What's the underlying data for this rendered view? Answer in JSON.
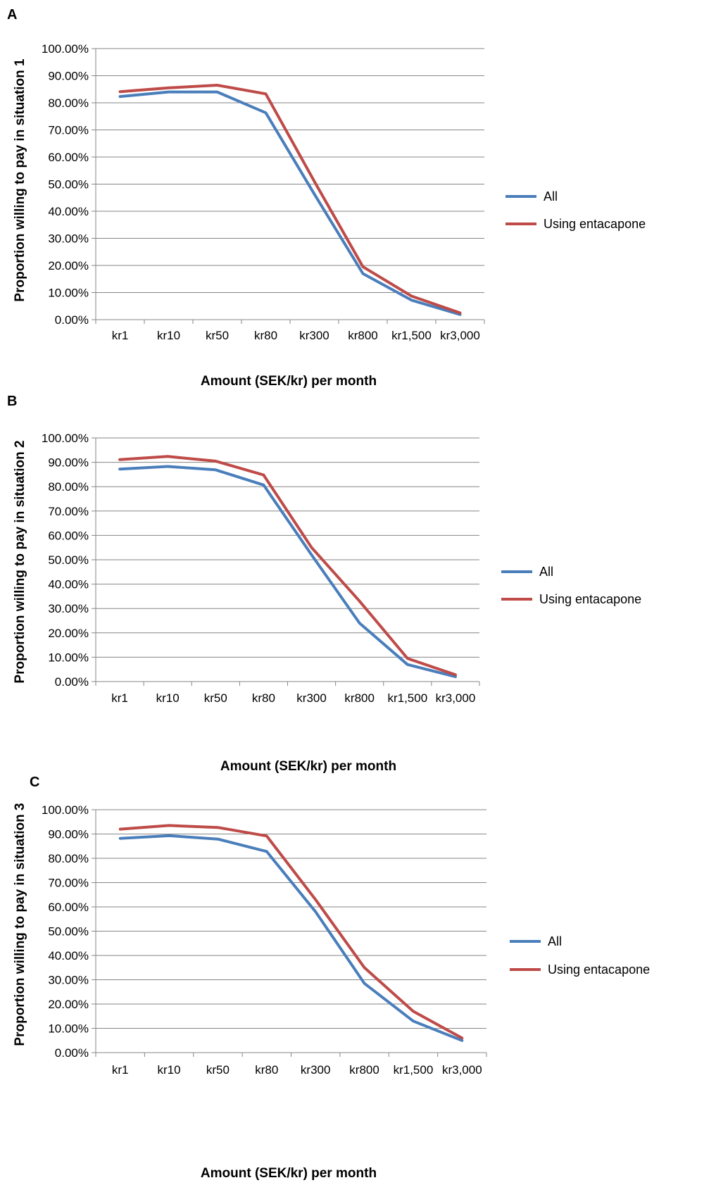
{
  "colors": {
    "all": "#4a7ebb",
    "entacapone": "#be4b48",
    "grid": "#868686",
    "axis": "#868686"
  },
  "chart_data": [
    {
      "panel": "A",
      "type": "line",
      "categories": [
        "kr1",
        "kr10",
        "kr50",
        "kr80",
        "kr300",
        "kr800",
        "kr1,500",
        "kr3,000"
      ],
      "ylim": [
        0,
        100
      ],
      "yticks": [
        "0.00%",
        "10.00%",
        "20.00%",
        "30.00%",
        "40.00%",
        "50.00%",
        "60.00%",
        "70.00%",
        "80.00%",
        "90.00%",
        "100.00%"
      ],
      "xlabel": "Amount (SEK/kr) per month",
      "ylabel": "Proportion willing to pay in situation 1",
      "legend_position": "right",
      "grid": true,
      "series": [
        {
          "name": "All",
          "color": "#4a7ebb",
          "values": [
            82.3,
            84.0,
            84.0,
            76.3,
            46.3,
            17.0,
            7.2,
            1.9
          ]
        },
        {
          "name": "Using entacapone",
          "color": "#be4b48",
          "values": [
            84.1,
            85.5,
            86.5,
            83.3,
            51.0,
            19.5,
            8.7,
            2.5
          ]
        }
      ]
    },
    {
      "panel": "B",
      "type": "line",
      "categories": [
        "kr1",
        "kr10",
        "kr50",
        "kr80",
        "kr300",
        "kr800",
        "kr1,500",
        "kr3,000"
      ],
      "ylim": [
        0,
        100
      ],
      "yticks": [
        "0.00%",
        "10.00%",
        "20.00%",
        "30.00%",
        "40.00%",
        "50.00%",
        "60.00%",
        "70.00%",
        "80.00%",
        "90.00%",
        "100.00%"
      ],
      "xlabel": "Amount (SEK/kr) per month",
      "ylabel": "Proportion willing to pay in situation 2",
      "legend_position": "right",
      "grid": true,
      "series": [
        {
          "name": "All",
          "color": "#4a7ebb",
          "values": [
            87.2,
            88.3,
            86.9,
            80.7,
            52.0,
            24.0,
            7.0,
            2.0
          ]
        },
        {
          "name": "Using entacapone",
          "color": "#be4b48",
          "values": [
            91.1,
            92.4,
            90.5,
            84.8,
            55.0,
            33.0,
            9.5,
            2.8
          ]
        }
      ]
    },
    {
      "panel": "C",
      "type": "line",
      "categories": [
        "kr1",
        "kr10",
        "kr50",
        "kr80",
        "kr300",
        "kr800",
        "kr1,500",
        "kr3,000"
      ],
      "ylim": [
        0,
        100
      ],
      "yticks": [
        "0.00%",
        "10.00%",
        "20.00%",
        "30.00%",
        "40.00%",
        "50.00%",
        "60.00%",
        "70.00%",
        "80.00%",
        "90.00%",
        "100.00%"
      ],
      "xlabel": "Amount (SEK/kr) per month",
      "ylabel": "Proportion willing to pay in situation 3",
      "legend_position": "right",
      "grid": true,
      "series": [
        {
          "name": "All",
          "color": "#4a7ebb",
          "values": [
            88.2,
            89.3,
            87.9,
            82.8,
            58.0,
            28.5,
            13.0,
            5.0
          ]
        },
        {
          "name": "Using entacapone",
          "color": "#be4b48",
          "values": [
            92.0,
            93.5,
            92.7,
            89.2,
            63.0,
            35.0,
            17.0,
            6.0
          ]
        }
      ]
    }
  ]
}
